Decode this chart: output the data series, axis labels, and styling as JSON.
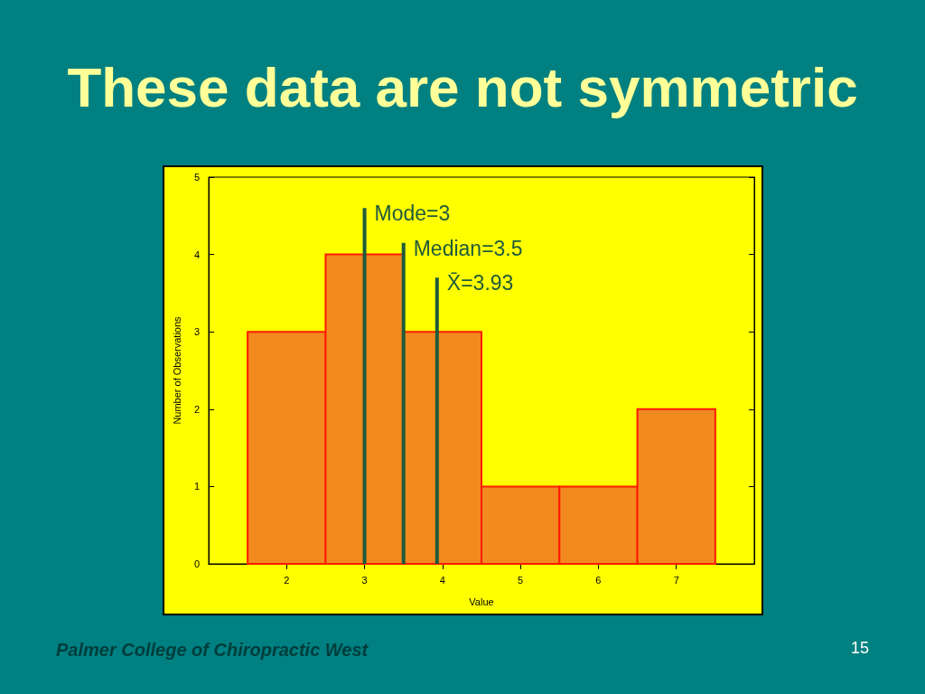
{
  "chart_data": {
    "type": "histogram",
    "title": "These data are not symmetric",
    "xlabel": "Value",
    "ylabel": "Number of Observations",
    "bins": [
      1.5,
      2.5,
      3.5,
      4.5,
      5.5,
      6.5,
      7.5
    ],
    "values": [
      3,
      4,
      3,
      1,
      1,
      2
    ],
    "color": "#f38a1f",
    "xlim": [
      1,
      8
    ],
    "xticks": [
      2,
      3,
      4,
      5,
      6,
      7
    ],
    "ylim": [
      0,
      5
    ],
    "yticks": [
      0,
      1,
      2,
      3,
      4,
      5
    ],
    "ref_lines": [
      {
        "axis": "x",
        "value": 3,
        "label": "Mode=3",
        "color": "#1f5a3c"
      },
      {
        "axis": "x",
        "value": 3.5,
        "label": "Median=3.5",
        "color": "#1f5a3c"
      },
      {
        "axis": "x",
        "value": 3.93,
        "label": "X̄=3.93",
        "color": "#1f5a3c"
      }
    ],
    "annotations": [
      "Palmer College of Chiropractic West",
      "15"
    ]
  }
}
